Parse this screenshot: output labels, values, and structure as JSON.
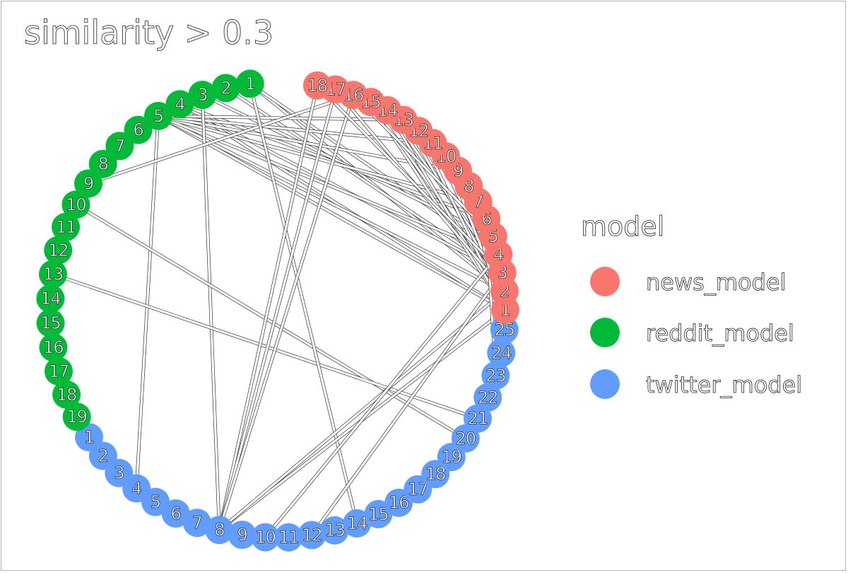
{
  "title": "similarity > 0.3",
  "legend": {
    "title": "model",
    "items": [
      {
        "label": "news_model",
        "color": "#f8766d"
      },
      {
        "label": "reddit_model",
        "color": "#00ba38"
      },
      {
        "label": "twitter_model",
        "color": "#619cff"
      }
    ]
  },
  "groups": {
    "news": {
      "color": "#f8766d",
      "labels": [
        "1",
        "2",
        "3",
        "4",
        "5",
        "6",
        "7",
        "8",
        "9",
        "10",
        "11",
        "12",
        "13",
        "14",
        "15",
        "16",
        "17",
        "18"
      ]
    },
    "reddit": {
      "color": "#00ba38",
      "labels": [
        "1",
        "2",
        "3",
        "4",
        "5",
        "6",
        "7",
        "8",
        "9",
        "10",
        "11",
        "12",
        "13",
        "14",
        "15",
        "16",
        "17",
        "18",
        "19"
      ]
    },
    "twitter": {
      "color": "#619cff",
      "labels": [
        "1",
        "2",
        "3",
        "4",
        "5",
        "6",
        "7",
        "8",
        "9",
        "10",
        "11",
        "12",
        "13",
        "14",
        "15",
        "16",
        "17",
        "18",
        "19",
        "20",
        "21",
        "22",
        "23",
        "24",
        "25"
      ]
    }
  },
  "edges": [
    [
      "reddit:1",
      "news:2"
    ],
    [
      "reddit:1",
      "news:4"
    ],
    [
      "reddit:2",
      "news:3"
    ],
    [
      "reddit:3",
      "news:5"
    ],
    [
      "reddit:4",
      "news:1"
    ],
    [
      "reddit:4",
      "news:3"
    ],
    [
      "reddit:4",
      "news:6"
    ],
    [
      "reddit:5",
      "news:1"
    ],
    [
      "reddit:5",
      "news:2"
    ],
    [
      "reddit:5",
      "news:4"
    ],
    [
      "reddit:5",
      "news:7"
    ],
    [
      "reddit:5",
      "news:9"
    ],
    [
      "reddit:5",
      "news:11"
    ],
    [
      "reddit:5",
      "news:13"
    ],
    [
      "reddit:5",
      "twitter:4"
    ],
    [
      "reddit:3",
      "twitter:8"
    ],
    [
      "reddit:9",
      "news:16"
    ],
    [
      "reddit:10",
      "twitter:20"
    ],
    [
      "reddit:13",
      "twitter:21"
    ],
    [
      "reddit:1",
      "twitter:14"
    ],
    [
      "news:18",
      "twitter:8"
    ],
    [
      "news:17",
      "twitter:8"
    ],
    [
      "news:16",
      "twitter:8"
    ],
    [
      "news:15",
      "news:1"
    ],
    [
      "news:15",
      "news:2"
    ],
    [
      "news:14",
      "news:1"
    ],
    [
      "news:14",
      "news:3"
    ],
    [
      "news:13",
      "news:2"
    ],
    [
      "news:12",
      "news:1"
    ],
    [
      "news:12",
      "news:4"
    ],
    [
      "news:11",
      "news:2"
    ],
    [
      "news:10",
      "news:1"
    ],
    [
      "news:17",
      "news:2"
    ],
    [
      "news:18",
      "news:3"
    ],
    [
      "news:16",
      "news:5"
    ],
    [
      "news:1",
      "twitter:8"
    ],
    [
      "news:2",
      "twitter:8"
    ],
    [
      "news:3",
      "twitter:12"
    ],
    [
      "news:4",
      "twitter:10"
    ],
    [
      "news:1",
      "twitter:24"
    ],
    [
      "news:2",
      "twitter:22"
    ],
    [
      "news:6",
      "twitter:23"
    ],
    [
      "news:8",
      "twitter:25"
    ]
  ]
}
